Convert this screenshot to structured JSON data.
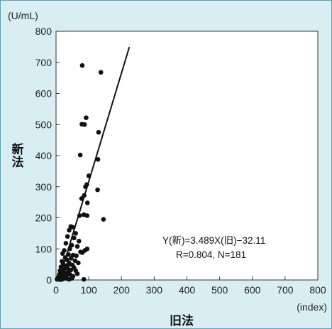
{
  "chart_data": {
    "type": "scatter",
    "y_unit": "(U/mL)",
    "x_unit": "(index)",
    "xlabel": "旧法",
    "ylabel": "新法",
    "xlim": [
      0,
      800
    ],
    "ylim": [
      0,
      800
    ],
    "x_ticks": [
      0,
      100,
      200,
      300,
      400,
      500,
      600,
      700,
      800
    ],
    "y_ticks": [
      0,
      100,
      200,
      300,
      400,
      500,
      600,
      700,
      800
    ],
    "annotations": [
      "Y(新)=3.489X(旧)−32.11",
      "R=0.804, N=181"
    ],
    "regression": {
      "slope": 3.489,
      "intercept": -32.11,
      "x_start": 9.2,
      "x_end": 224
    },
    "points": [
      [
        80,
        690
      ],
      [
        137,
        668
      ],
      [
        92,
        522
      ],
      [
        79,
        501
      ],
      [
        87,
        500
      ],
      [
        130,
        475
      ],
      [
        128,
        388
      ],
      [
        74,
        402
      ],
      [
        100,
        335
      ],
      [
        94,
        307
      ],
      [
        90,
        300
      ],
      [
        127,
        290
      ],
      [
        86,
        272
      ],
      [
        78,
        262
      ],
      [
        96,
        248
      ],
      [
        85,
        210
      ],
      [
        95,
        207
      ],
      [
        72,
        207
      ],
      [
        145,
        195
      ],
      [
        45,
        172
      ],
      [
        50,
        170
      ],
      [
        40,
        160
      ],
      [
        60,
        150
      ],
      [
        35,
        140
      ],
      [
        55,
        135
      ],
      [
        70,
        125
      ],
      [
        30,
        118
      ],
      [
        48,
        112
      ],
      [
        65,
        108
      ],
      [
        25,
        95
      ],
      [
        42,
        100
      ],
      [
        88,
        95
      ],
      [
        95,
        100
      ],
      [
        80,
        88
      ],
      [
        75,
        90
      ],
      [
        20,
        85
      ],
      [
        38,
        82
      ],
      [
        52,
        80
      ],
      [
        62,
        78
      ],
      [
        28,
        72
      ],
      [
        46,
        70
      ],
      [
        33,
        65
      ],
      [
        58,
        62
      ],
      [
        18,
        60
      ],
      [
        40,
        55
      ],
      [
        22,
        50
      ],
      [
        50,
        48
      ],
      [
        30,
        45
      ],
      [
        15,
        42
      ],
      [
        35,
        38
      ],
      [
        25,
        35
      ],
      [
        45,
        32
      ],
      [
        12,
        30
      ],
      [
        20,
        28
      ],
      [
        38,
        26
      ],
      [
        28,
        22
      ],
      [
        16,
        20
      ],
      [
        10,
        18
      ],
      [
        42,
        18
      ],
      [
        22,
        15
      ],
      [
        32,
        14
      ],
      [
        14,
        12
      ],
      [
        8,
        10
      ],
      [
        18,
        8
      ],
      [
        26,
        7
      ],
      [
        6,
        6
      ],
      [
        12,
        5
      ],
      [
        4,
        4
      ],
      [
        20,
        3
      ],
      [
        9,
        2
      ],
      [
        3,
        2
      ],
      [
        15,
        1
      ],
      [
        30,
        5
      ],
      [
        55,
        40
      ],
      [
        60,
        30
      ],
      [
        68,
        55
      ],
      [
        48,
        5
      ],
      [
        52,
        12
      ],
      [
        85,
        2
      ],
      [
        40,
        2
      ],
      [
        65,
        20
      ],
      [
        36,
        48
      ]
    ]
  }
}
